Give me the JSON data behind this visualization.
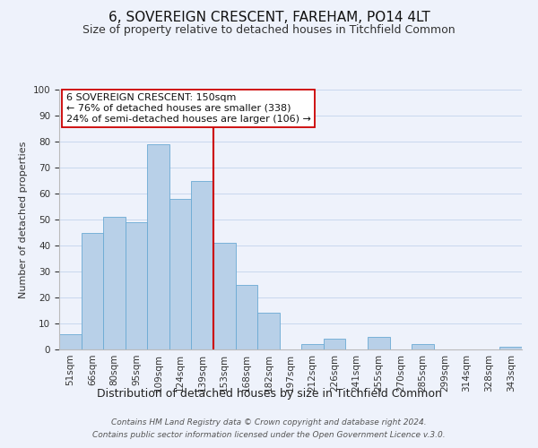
{
  "title": "6, SOVEREIGN CRESCENT, FAREHAM, PO14 4LT",
  "subtitle": "Size of property relative to detached houses in Titchfield Common",
  "xlabel": "Distribution of detached houses by size in Titchfield Common",
  "ylabel": "Number of detached properties",
  "bar_labels": [
    "51sqm",
    "66sqm",
    "80sqm",
    "95sqm",
    "109sqm",
    "124sqm",
    "139sqm",
    "153sqm",
    "168sqm",
    "182sqm",
    "197sqm",
    "212sqm",
    "226sqm",
    "241sqm",
    "255sqm",
    "270sqm",
    "285sqm",
    "299sqm",
    "314sqm",
    "328sqm",
    "343sqm"
  ],
  "bar_values": [
    6,
    45,
    51,
    49,
    79,
    58,
    65,
    41,
    25,
    14,
    0,
    2,
    4,
    0,
    5,
    0,
    2,
    0,
    0,
    0,
    1
  ],
  "bar_color": "#b8d0e8",
  "bar_edge_color": "#6aaad4",
  "vline_color": "#cc0000",
  "ylim": [
    0,
    100
  ],
  "annotation_title": "6 SOVEREIGN CRESCENT: 150sqm",
  "annotation_line1": "← 76% of detached houses are smaller (338)",
  "annotation_line2": "24% of semi-detached houses are larger (106) →",
  "annotation_box_color": "#ffffff",
  "annotation_box_edge": "#cc0000",
  "footer_line1": "Contains HM Land Registry data © Crown copyright and database right 2024.",
  "footer_line2": "Contains public sector information licensed under the Open Government Licence v.3.0.",
  "title_fontsize": 11,
  "subtitle_fontsize": 9,
  "xlabel_fontsize": 9,
  "ylabel_fontsize": 8,
  "tick_fontsize": 7.5,
  "annotation_fontsize": 8,
  "footer_fontsize": 6.5,
  "background_color": "#eef2fb"
}
